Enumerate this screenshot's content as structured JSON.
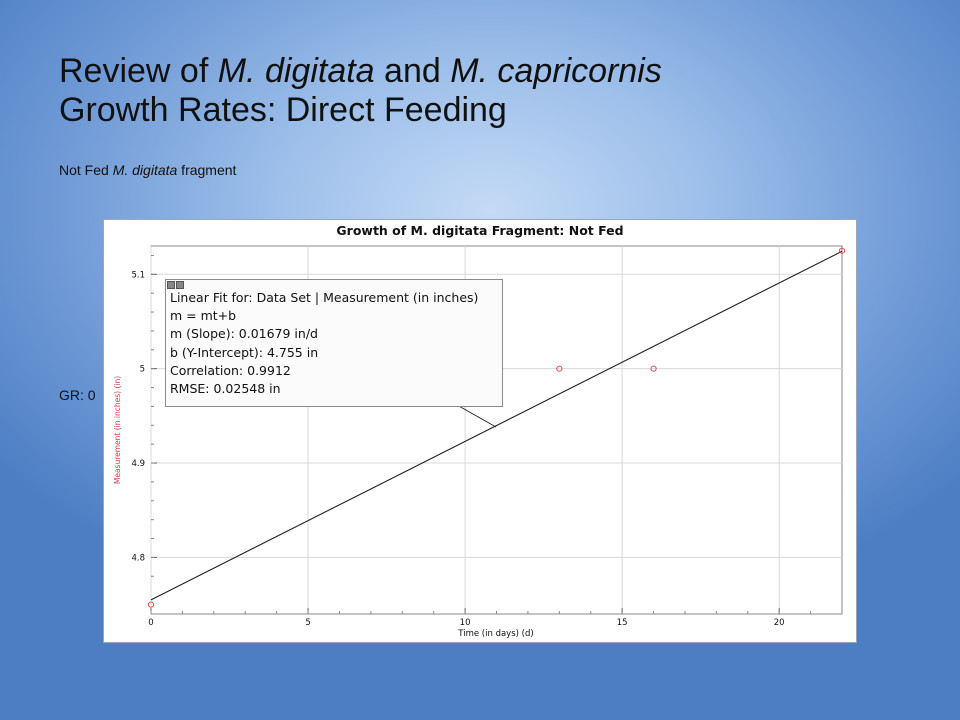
{
  "slide": {
    "title_part1": "Review of ",
    "title_italic1": "M. digitata",
    "title_part2": " and ",
    "title_italic2": "M. capricornis",
    "title_line2": "Growth Rates: Direct Feeding",
    "subtitle_part1": "Not Fed ",
    "subtitle_italic": "M. digitata",
    "subtitle_part2": " fragment",
    "gr_label": "GR: 0"
  },
  "fit_box": {
    "line1": "Linear Fit for: Data Set | Measurement (in inches)",
    "line2": "m = mt+b",
    "line3": "m (Slope): 0.01679 in/d",
    "line4": "b (Y-Intercept): 4.755 in",
    "line5": "Correlation: 0.9912",
    "line6": "RMSE: 0.02548 in"
  },
  "chart_data": {
    "type": "scatter",
    "title": "Growth of M. digitata Fragment: Not Fed",
    "xlabel": "Time (in days) (d)",
    "ylabel": "Measurement (in inches) (in)",
    "xlim": [
      0,
      22
    ],
    "ylim": [
      4.74,
      5.13
    ],
    "x_ticks": [
      0,
      5,
      10,
      15,
      20
    ],
    "y_ticks": [
      4.8,
      4.9,
      5.0,
      5.1
    ],
    "y_tick_labels": [
      "4.8",
      "4.9",
      "5",
      "5.1"
    ],
    "grid": true,
    "series": [
      {
        "points": [
          {
            "x": 0,
            "y": 4.75
          },
          {
            "x": 13,
            "y": 5.0
          },
          {
            "x": 16,
            "y": 5.0
          },
          {
            "x": 22,
            "y": 5.125
          }
        ],
        "marker_color": "#e05050"
      }
    ],
    "fit_line": {
      "slope": 0.01679,
      "intercept": 4.755,
      "color": "#222222"
    },
    "ylabel_color": "#e0304a"
  }
}
